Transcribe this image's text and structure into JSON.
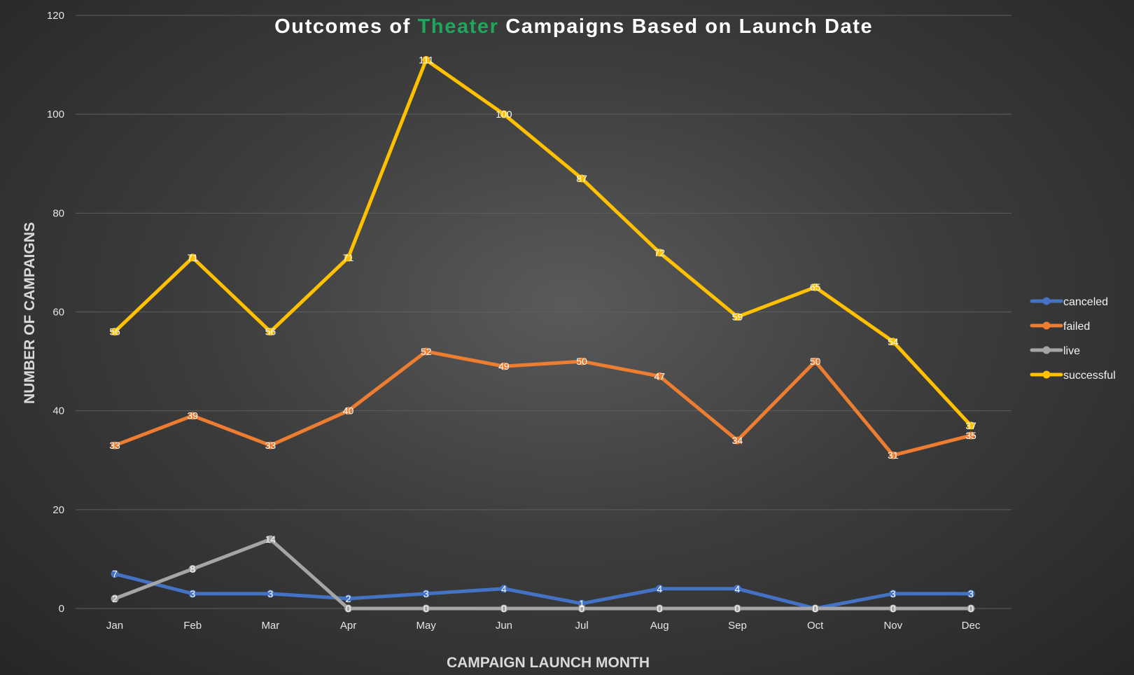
{
  "chart_data": {
    "type": "line",
    "title": {
      "prefix": "Outcomes of ",
      "highlight": "Theater",
      "suffix": " Campaigns Based on Launch Date",
      "highlight_color": "#1fa65a"
    },
    "xlabel": "CAMPAIGN LAUNCH MONTH",
    "ylabel": "NUMBER OF CAMPAIGNS",
    "categories": [
      "Jan",
      "Feb",
      "Mar",
      "Apr",
      "May",
      "Jun",
      "Jul",
      "Aug",
      "Sep",
      "Oct",
      "Nov",
      "Dec"
    ],
    "ylim": [
      0,
      120
    ],
    "yticks": [
      0,
      20,
      40,
      60,
      80,
      100,
      120
    ],
    "grid": true,
    "legend_position": "right",
    "series": [
      {
        "name": "canceled",
        "color": "#4472c4",
        "values": [
          7,
          3,
          3,
          2,
          3,
          4,
          1,
          4,
          4,
          0,
          3,
          3
        ]
      },
      {
        "name": "failed",
        "color": "#ed7d31",
        "values": [
          33,
          39,
          33,
          40,
          52,
          49,
          50,
          47,
          34,
          50,
          31,
          35
        ]
      },
      {
        "name": "live",
        "color": "#a5a5a5",
        "values": [
          2,
          8,
          14,
          0,
          0,
          0,
          0,
          0,
          0,
          0,
          0,
          0
        ]
      },
      {
        "name": "successful",
        "color": "#ffc000",
        "values": [
          56,
          71,
          56,
          71,
          111,
          100,
          87,
          72,
          59,
          65,
          54,
          37
        ]
      }
    ],
    "colors": {
      "background": "#3d3d3d",
      "gridline": "#5e5e5e",
      "text": "#e6e6e6"
    }
  }
}
